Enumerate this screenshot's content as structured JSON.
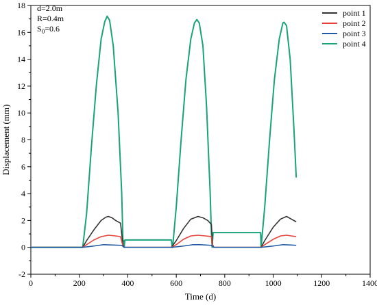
{
  "chart_data": {
    "type": "line",
    "title": "",
    "xlabel": "Time (d)",
    "ylabel": "Displacement (mm)",
    "xlim": [
      0,
      1400
    ],
    "ylim": [
      -2,
      18
    ],
    "xticks": [
      0,
      200,
      400,
      600,
      800,
      1000,
      1200,
      1400
    ],
    "yticks": [
      -2,
      0,
      2,
      4,
      6,
      8,
      10,
      12,
      14,
      16,
      18
    ],
    "grid": false,
    "legend_position": "top-right",
    "annotations": {
      "d": "d=2.0m",
      "R": "R=0.4m",
      "S0_base": "S",
      "S0_sub": "0",
      "S0_value": "=0.6"
    },
    "series": [
      {
        "name": "point 1",
        "color": "#333333",
        "points": [
          [
            0,
            0
          ],
          [
            214,
            0
          ],
          [
            230,
            0.5
          ],
          [
            260,
            1.3
          ],
          [
            290,
            2.0
          ],
          [
            310,
            2.25
          ],
          [
            320,
            2.3
          ],
          [
            335,
            2.2
          ],
          [
            350,
            2.0
          ],
          [
            370,
            1.8
          ],
          [
            380,
            0.2
          ],
          [
            385,
            0
          ],
          [
            580,
            0
          ],
          [
            600,
            0.5
          ],
          [
            630,
            1.4
          ],
          [
            660,
            2.1
          ],
          [
            690,
            2.3
          ],
          [
            710,
            2.2
          ],
          [
            730,
            2.0
          ],
          [
            745,
            1.7
          ],
          [
            750,
            0.2
          ],
          [
            755,
            0
          ],
          [
            950,
            0
          ],
          [
            965,
            0.5
          ],
          [
            1000,
            1.5
          ],
          [
            1030,
            2.1
          ],
          [
            1055,
            2.3
          ],
          [
            1075,
            2.1
          ],
          [
            1095,
            1.9
          ]
        ]
      },
      {
        "name": "point 2",
        "color": "#e8413a",
        "points": [
          [
            0,
            0
          ],
          [
            214,
            0
          ],
          [
            230,
            0.2
          ],
          [
            260,
            0.55
          ],
          [
            290,
            0.8
          ],
          [
            320,
            0.9
          ],
          [
            350,
            0.85
          ],
          [
            370,
            0.8
          ],
          [
            380,
            0.1
          ],
          [
            385,
            0
          ],
          [
            580,
            0
          ],
          [
            600,
            0.2
          ],
          [
            630,
            0.6
          ],
          [
            660,
            0.85
          ],
          [
            690,
            0.9
          ],
          [
            720,
            0.85
          ],
          [
            745,
            0.8
          ],
          [
            750,
            0.1
          ],
          [
            755,
            0
          ],
          [
            950,
            0
          ],
          [
            965,
            0.2
          ],
          [
            1000,
            0.6
          ],
          [
            1030,
            0.85
          ],
          [
            1055,
            0.9
          ],
          [
            1075,
            0.85
          ],
          [
            1095,
            0.8
          ]
        ]
      },
      {
        "name": "point 3",
        "color": "#1f5aa6",
        "points": [
          [
            0,
            0
          ],
          [
            214,
            0
          ],
          [
            260,
            0.1
          ],
          [
            300,
            0.2
          ],
          [
            330,
            0.18
          ],
          [
            375,
            0.15
          ],
          [
            385,
            0
          ],
          [
            580,
            0
          ],
          [
            630,
            0.1
          ],
          [
            670,
            0.2
          ],
          [
            700,
            0.2
          ],
          [
            745,
            0.15
          ],
          [
            755,
            0
          ],
          [
            950,
            0
          ],
          [
            1000,
            0.1
          ],
          [
            1040,
            0.2
          ],
          [
            1070,
            0.18
          ],
          [
            1095,
            0.15
          ]
        ]
      },
      {
        "name": "point 4",
        "color": "#1aa37a",
        "points": [
          [
            0,
            0
          ],
          [
            214,
            0
          ],
          [
            230,
            2.5
          ],
          [
            250,
            7.5
          ],
          [
            270,
            12.0
          ],
          [
            290,
            15.5
          ],
          [
            305,
            16.8
          ],
          [
            315,
            17.2
          ],
          [
            325,
            16.9
          ],
          [
            340,
            15.0
          ],
          [
            360,
            10.0
          ],
          [
            375,
            4.0
          ],
          [
            380,
            0.5
          ],
          [
            383,
            0.5
          ],
          [
            385,
            0
          ],
          [
            388,
            0.55
          ],
          [
            580,
            0.55
          ],
          [
            583,
            0.0
          ],
          [
            585,
            0
          ],
          [
            600,
            3.0
          ],
          [
            620,
            8.0
          ],
          [
            640,
            12.5
          ],
          [
            660,
            15.5
          ],
          [
            675,
            16.7
          ],
          [
            685,
            16.95
          ],
          [
            695,
            16.7
          ],
          [
            710,
            15.0
          ],
          [
            725,
            10.5
          ],
          [
            740,
            4.0
          ],
          [
            745,
            1.1
          ],
          [
            748,
            0
          ],
          [
            752,
            1.1
          ],
          [
            948,
            1.1
          ],
          [
            950,
            0
          ],
          [
            965,
            3.0
          ],
          [
            985,
            8.0
          ],
          [
            1005,
            12.5
          ],
          [
            1025,
            15.5
          ],
          [
            1040,
            16.7
          ],
          [
            1045,
            16.75
          ],
          [
            1055,
            16.5
          ],
          [
            1070,
            14.0
          ],
          [
            1085,
            9.0
          ],
          [
            1095,
            5.2
          ]
        ]
      }
    ]
  }
}
